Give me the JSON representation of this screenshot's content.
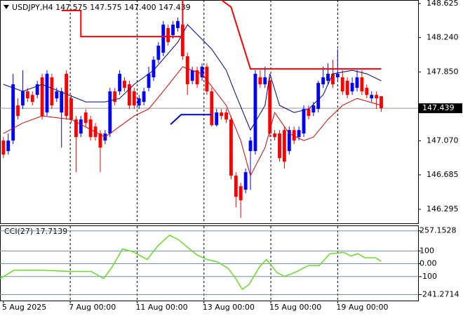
{
  "chart_data": {
    "type": "candlestick",
    "title": "USDJPY,H4 147.575 147.575 147.400 147.439",
    "up_color": "#0000ff",
    "down_color": "#ff0000",
    "open": [
      147.073,
      146.954,
      147.073,
      147.471,
      147.471,
      147.63,
      147.59,
      147.59,
      147.789,
      147.391,
      147.789,
      147.551,
      147.391,
      147.829,
      147.551,
      147.312,
      147.153,
      147.391,
      147.312,
      147.232,
      147.153,
      147.073,
      147.153,
      147.63,
      147.63,
      147.75,
      147.71,
      147.63,
      147.471,
      147.511,
      147.67,
      147.789,
      147.988,
      148.068,
      148.347,
      148.267,
      148.347,
      148.386,
      148.028,
      147.75,
      147.869,
      147.789,
      147.909,
      147.63,
      147.248,
      147.391,
      147.391,
      147.312,
      146.675,
      146.556,
      146.516,
      146.954,
      146.954,
      147.789,
      147.71,
      147.75,
      147.153,
      147.153,
      147.192,
      146.954,
      147.192,
      147.113,
      147.153,
      147.431,
      147.391,
      147.431,
      147.71,
      147.75,
      147.829,
      147.789,
      147.789,
      147.75,
      147.63,
      147.67,
      147.789,
      147.67,
      147.551,
      147.59,
      147.575
    ],
    "high": [
      147.113,
      147.153,
      147.829,
      147.551,
      147.869,
      147.67,
      147.63,
      147.75,
      147.829,
      147.869,
      147.829,
      147.67,
      147.67,
      147.869,
      147.59,
      147.352,
      147.352,
      147.431,
      147.352,
      147.272,
      147.192,
      147.192,
      147.67,
      147.67,
      147.869,
      147.789,
      147.75,
      147.67,
      147.59,
      147.67,
      147.909,
      148.028,
      148.187,
      148.426,
      148.386,
      148.426,
      148.466,
      148.426,
      148.068,
      147.909,
      147.909,
      147.948,
      147.948,
      147.67,
      147.431,
      147.431,
      147.431,
      147.352,
      146.715,
      146.595,
      146.755,
      147.113,
      147.869,
      147.869,
      147.909,
      147.789,
      147.192,
      147.192,
      147.232,
      147.232,
      147.232,
      147.232,
      147.471,
      147.471,
      147.511,
      147.75,
      147.909,
      147.948,
      147.988,
      148.108,
      147.869,
      147.789,
      147.789,
      147.869,
      147.869,
      147.71,
      147.63,
      147.63,
      147.575
    ],
    "low": [
      146.874,
      146.914,
      147.033,
      147.312,
      147.431,
      147.511,
      147.471,
      147.551,
      147.312,
      147.352,
      147.431,
      147.511,
      146.993,
      147.312,
      147.272,
      146.715,
      147.113,
      147.232,
      147.073,
      147.073,
      146.715,
      147.033,
      147.113,
      147.471,
      147.59,
      147.63,
      147.431,
      147.431,
      147.431,
      147.471,
      147.63,
      147.75,
      147.948,
      148.028,
      148.148,
      148.227,
      148.307,
      147.988,
      147.59,
      147.71,
      147.67,
      147.75,
      147.59,
      147.232,
      147.232,
      147.312,
      147.272,
      146.635,
      146.317,
      146.197,
      146.476,
      146.516,
      146.914,
      147.67,
      147.67,
      147.113,
      147.073,
      146.834,
      146.755,
      146.914,
      147.033,
      147.073,
      147.113,
      147.312,
      147.352,
      147.391,
      147.67,
      147.71,
      147.67,
      147.75,
      147.59,
      147.551,
      147.59,
      147.63,
      147.59,
      147.551,
      147.511,
      147.431,
      147.4
    ],
    "close": [
      146.914,
      147.073,
      147.71,
      147.352,
      147.63,
      147.551,
      147.511,
      147.71,
      147.352,
      147.829,
      147.471,
      147.63,
      147.63,
      147.352,
      147.312,
      147.113,
      147.312,
      147.272,
      147.113,
      147.113,
      146.993,
      147.153,
      147.63,
      147.511,
      147.829,
      147.67,
      147.471,
      147.471,
      147.551,
      147.63,
      147.829,
      147.988,
      148.148,
      148.386,
      148.187,
      148.386,
      148.426,
      148.028,
      147.71,
      147.869,
      147.71,
      147.909,
      147.63,
      147.248,
      147.391,
      147.352,
      147.312,
      146.675,
      146.436,
      146.397,
      146.715,
      147.073,
      147.829,
      147.71,
      147.789,
      147.153,
      147.113,
      146.874,
      146.834,
      147.192,
      147.073,
      147.192,
      147.431,
      147.352,
      147.471,
      147.726,
      147.789,
      147.829,
      147.71,
      147.829,
      147.63,
      147.59,
      147.726,
      147.789,
      147.63,
      147.59,
      147.59,
      147.551,
      147.439
    ],
    "xlim": [
      -0.7,
      85.6
    ],
    "ylim": [
      146.136,
      148.665
    ],
    "yticks": [
      148.625,
      {
        "value": 148.24,
        "label": "148.240"
      },
      {
        "value": 147.85,
        "label": "147.850"
      },
      {
        "value": 147.07,
        "label": "147.070"
      },
      146.685,
      146.295
    ],
    "xticks": [
      {
        "value": 0,
        "label": "5 Aug 2025"
      },
      {
        "value": 13.8,
        "label": "7 Aug 00:00"
      },
      {
        "value": 27.6,
        "label": "11 Aug 00:00"
      },
      {
        "value": 41.4,
        "label": "13 Aug 00:00"
      },
      {
        "value": 55.2,
        "label": "15 Aug 00:00"
      },
      {
        "value": 69,
        "label": "19 Aug 00:00"
      }
    ],
    "grid": true,
    "current_price": 147.439,
    "lines": [
      {
        "color": "#00008b",
        "width": 1,
        "x": [
          0,
          4,
          8,
          17,
          21,
          24,
          27,
          31,
          36,
          38,
          43,
          46,
          48,
          51,
          54,
          55,
          57,
          60,
          63,
          66,
          68,
          72,
          75,
          78
        ],
        "values": [
          147.71,
          147.63,
          147.71,
          147.511,
          147.511,
          147.551,
          147.71,
          147.869,
          148.187,
          148.386,
          148.108,
          147.869,
          147.59,
          147.192,
          147.471,
          147.829,
          147.471,
          147.391,
          147.431,
          147.59,
          147.829,
          147.869,
          147.829,
          147.75
        ]
      },
      {
        "color": "#dd0000",
        "width": 1,
        "x": [
          0,
          4,
          8,
          14,
          21,
          27,
          30,
          33,
          37,
          41,
          46,
          49,
          51,
          54,
          56,
          59,
          62,
          64,
          67,
          70,
          73,
          78
        ],
        "values": [
          147.153,
          147.272,
          147.352,
          147.312,
          147.113,
          147.352,
          147.431,
          147.63,
          147.909,
          147.829,
          147.471,
          147.073,
          146.675,
          146.993,
          147.391,
          147.153,
          147.073,
          147.113,
          147.312,
          147.471,
          147.551,
          147.471
        ]
      },
      {
        "color": "#ff0000",
        "width": 2,
        "x": [
          12,
          16,
          16,
          37,
          37,
          40,
          45,
          47,
          51,
          78
        ],
        "values": [
          148.546,
          148.546,
          148.251,
          148.251,
          148.665,
          null,
          148.665,
          148.585,
          147.885,
          147.885
        ]
      },
      {
        "color": "#0000cd",
        "width": 2,
        "x": [
          34.5,
          36.7,
          43
        ],
        "values": [
          147.256,
          147.367,
          147.367
        ]
      }
    ],
    "indicator": {
      "type": "line",
      "title": "CCI(27) 17.7139",
      "color": "#66dd22",
      "x": [
        -0.7,
        2.2,
        8,
        13.8,
        18.1,
        20.7,
        22.5,
        24.6,
        26.8,
        29.7,
        31.9,
        34.3,
        36.2,
        39.9,
        42,
        44.2,
        46.4,
        47.8,
        49.3,
        50.7,
        52.9,
        54.3,
        56.5,
        58,
        60.1,
        63,
        65.2,
        67.4,
        70.3,
        71.7,
        73.2,
        74.6,
        76.8,
        78
      ],
      "values": [
        -116,
        -51,
        -51,
        -60,
        -60,
        -116,
        -23,
        116,
        93,
        33,
        140,
        223,
        186,
        70,
        33,
        14,
        -37,
        -107,
        -200,
        -163,
        -23,
        33,
        -70,
        -98,
        -70,
        -14,
        -14,
        79,
        88,
        60,
        79,
        47,
        47,
        17.7139
      ],
      "ylim": [
        -288,
        294
      ],
      "yticks": [
        257.1528,
        100,
        {
          "value": 0,
          "label": "0.00"
        },
        -100,
        -241.2714
      ]
    }
  }
}
